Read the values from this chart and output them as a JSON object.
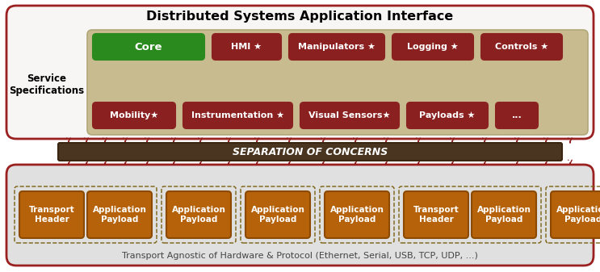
{
  "title": "Distributed Systems Application Interface",
  "bottom_label": "Transport Agnostic of Hardware & Protocol (Ethernet, Serial, USB, TCP, UDP, ...)",
  "separation_label": "SEPARATION OF CONCERNS",
  "service_spec_label": "Service\nSpecifications",
  "core_color": "#2a8a1e",
  "red_box_color": "#8b2020",
  "red_box_edge": "#a02828",
  "tan_bg_color": "#c8bb90",
  "tan_bg_edge": "#b0a878",
  "outer_top_bg": "#f8f5f5",
  "outer_top_edge": "#9b2020",
  "sep_bar_color": "#4a3520",
  "sep_bar_edge": "#3a2510",
  "bottom_bg": "#e0e0e0",
  "bottom_bg_edge": "#9b2020",
  "transport_box_color": "#b5620a",
  "transport_box_edge": "#8b4a00",
  "dashed_group_edge": "#7a6010",
  "arrow_color": "#8b1a1a",
  "white": "#ffffff",
  "black": "#000000",
  "gray_text": "#555555",
  "fig_w": 7.43,
  "fig_h": 3.37,
  "dpi": 100
}
